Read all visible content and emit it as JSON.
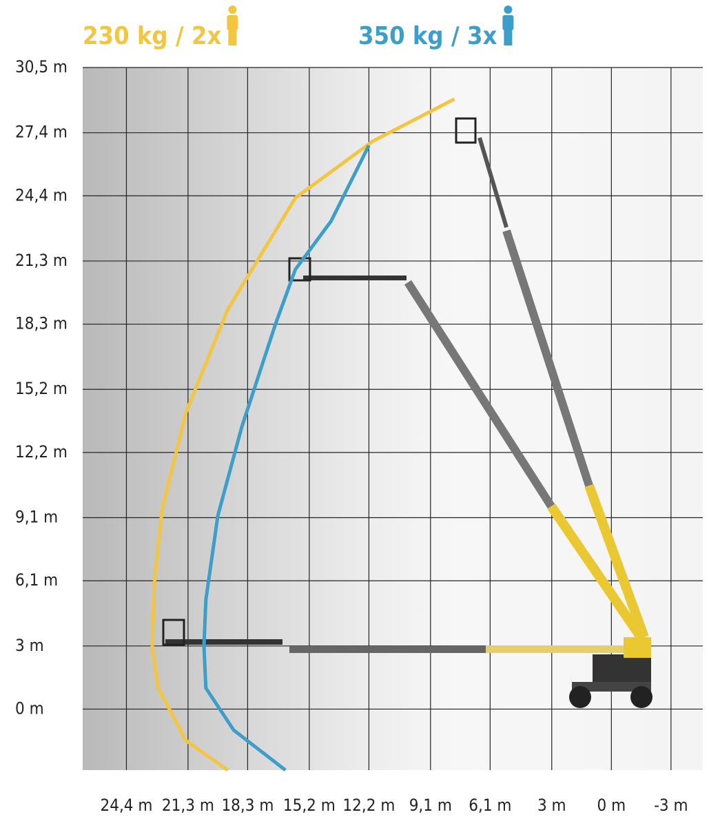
{
  "chart_data": {
    "type": "line",
    "series": [
      {
        "name": "230 kg / 2x",
        "color": "#f2c641",
        "x": [
          19.3,
          21.4,
          22.8,
          23.1,
          23.0,
          22.6,
          21.4,
          19.3,
          15.9,
          12.0,
          7.9
        ],
        "values": [
          -2.9,
          -1.5,
          1.0,
          3.0,
          5.9,
          9.5,
          14.1,
          19.0,
          24.3,
          27.0,
          29.0
        ]
      },
      {
        "name": "350 kg / 3x",
        "color": "#3d9fc9",
        "x": [
          16.4,
          19.0,
          20.4,
          20.5,
          20.4,
          19.8,
          18.6,
          16.9,
          15.9,
          14.1,
          12.2
        ],
        "values": [
          -2.9,
          -1.0,
          1.0,
          3.0,
          5.2,
          9.2,
          13.4,
          18.3,
          20.9,
          23.2,
          26.8
        ]
      }
    ],
    "xlim": [
      26.6,
      -4.6
    ],
    "ylim": [
      -2.9,
      30.5
    ],
    "xticks": [
      {
        "value": 24.4,
        "label": "24,4 m"
      },
      {
        "value": 21.3,
        "label": "21,3 m"
      },
      {
        "value": 18.3,
        "label": "18,3 m"
      },
      {
        "value": 15.2,
        "label": "15,2 m"
      },
      {
        "value": 12.2,
        "label": "12,2 m"
      },
      {
        "value": 9.1,
        "label": "9,1 m"
      },
      {
        "value": 6.1,
        "label": "6,1 m"
      },
      {
        "value": 3,
        "label": "3 m"
      },
      {
        "value": 0,
        "label": "0 m"
      },
      {
        "value": -3,
        "label": "-3 m"
      }
    ],
    "yticks": [
      {
        "value": 30.5,
        "label": "30,5 m"
      },
      {
        "value": 27.4,
        "label": "27,4 m"
      },
      {
        "value": 24.4,
        "label": "24,4 m"
      },
      {
        "value": 21.3,
        "label": "21,3 m"
      },
      {
        "value": 18.3,
        "label": "18,3 m"
      },
      {
        "value": 15.2,
        "label": "15,2 m"
      },
      {
        "value": 12.2,
        "label": "12,2 m"
      },
      {
        "value": 9.1,
        "label": "9,1 m"
      },
      {
        "value": 6.1,
        "label": "6,1 m"
      },
      {
        "value": 3,
        "label": "3 m"
      },
      {
        "value": 0,
        "label": "0 m"
      }
    ],
    "grid": true
  }
}
